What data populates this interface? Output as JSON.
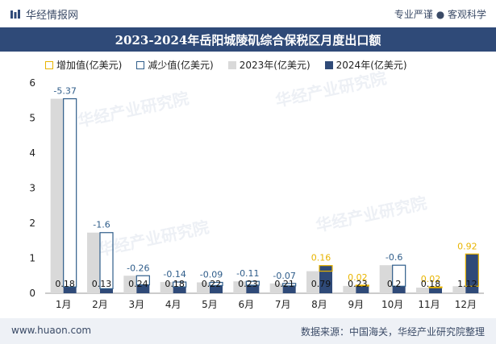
{
  "header": {
    "brand": "华经情报网",
    "slogan": "专业严谨 ● 客观科学",
    "title": "2023-2024年岳阳城陵矶综合保税区月度出口额"
  },
  "legend": {
    "increase": "增加值(亿美元)",
    "decrease": "减少值(亿美元)",
    "y2023": "2023年(亿美元)",
    "y2024": "2024年(亿美元)"
  },
  "watermark": "华经产业研究院",
  "footer": {
    "left": "www.huaon.com",
    "right": "数据来源：中国海关，华经产业研究院整理"
  },
  "colors": {
    "title_bg": "#2f4a78",
    "bar_2023": "#d9d9d9",
    "bar_2024": "#2f4a78",
    "increase": "#e8b400",
    "decrease": "#2f5d8a"
  },
  "chart_data": {
    "type": "bar",
    "categories": [
      "1月",
      "2月",
      "3月",
      "4月",
      "5月",
      "6月",
      "7月",
      "8月",
      "9月",
      "10月",
      "11月",
      "12月"
    ],
    "series": [
      {
        "name": "2023年(亿美元)",
        "values": [
          5.55,
          1.73,
          0.5,
          0.32,
          0.31,
          0.34,
          0.28,
          0.63,
          0.21,
          0.8,
          0.16,
          0.2
        ]
      },
      {
        "name": "2024年(亿美元)",
        "values": [
          0.18,
          0.13,
          0.24,
          0.18,
          0.22,
          0.23,
          0.21,
          0.79,
          0.23,
          0.2,
          0.18,
          1.12
        ]
      }
    ],
    "change": [
      -5.37,
      -1.6,
      -0.26,
      -0.14,
      -0.09,
      -0.11,
      -0.07,
      0.16,
      0.02,
      -0.6,
      0.02,
      0.92
    ],
    "change_labels": [
      "-5.37",
      "-1.6",
      "-0.26",
      "-0.14",
      "-0.09",
      "-0.11",
      "-0.07",
      "0.16",
      "0.02",
      "-0.6",
      "0.02",
      "0.92"
    ],
    "value_labels_2024": [
      "0.18",
      "0.13",
      "0.24",
      "0.18",
      "0.22",
      "0.23",
      "0.21",
      "0.79",
      "0.23",
      "0.2",
      "0.18",
      "1.12"
    ],
    "ylim": [
      0,
      6
    ],
    "yticks": [
      "0",
      "1",
      "2",
      "3",
      "4",
      "5",
      "6"
    ],
    "grid": false,
    "legend_position": "top"
  }
}
